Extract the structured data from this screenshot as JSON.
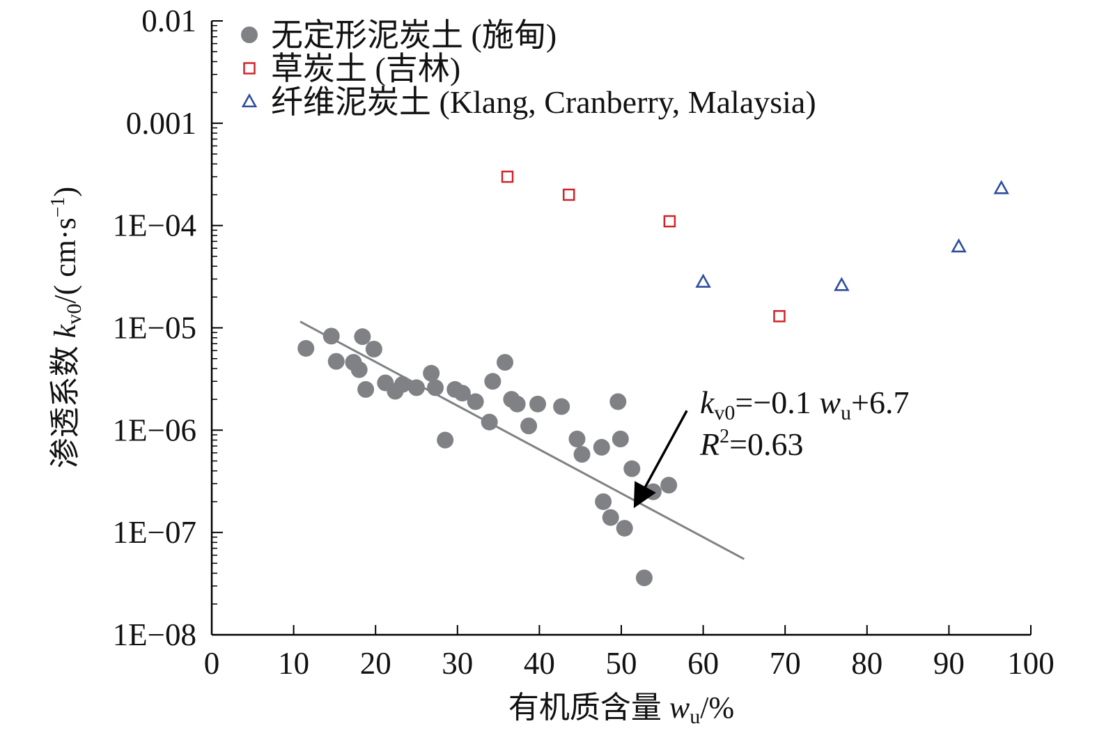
{
  "chart_data": {
    "type": "scatter",
    "title": "",
    "xlabel": "有机质含量 w_u/%",
    "xlabel_parts": {
      "prefix": "有机质含量 ",
      "var": "w",
      "sub": "u",
      "suffix": "/%"
    },
    "ylabel": "渗透系数 k_v0/( cm·s⁻¹)",
    "ylabel_parts": {
      "prefix": "渗透系数 ",
      "var": "k",
      "sub": "v0",
      "suffix": "/( cm·s",
      "sup": "−1",
      "close": ")"
    },
    "xlim": [
      0,
      100
    ],
    "ylim": [
      1e-08,
      0.01
    ],
    "yscale": "log",
    "xticks": [
      0,
      10,
      20,
      30,
      40,
      50,
      60,
      70,
      80,
      90,
      100
    ],
    "xtick_labels": [
      "0",
      "10",
      "20",
      "30",
      "40",
      "50",
      "60",
      "70",
      "80",
      "90",
      "100"
    ],
    "yticks": [
      1e-08,
      1e-07,
      1e-06,
      1e-05,
      0.0001,
      0.001,
      0.01
    ],
    "ytick_labels": [
      "1E−08",
      "1E−07",
      "1E−06",
      "1E−05",
      "1E−04",
      "0.001",
      "0.01"
    ],
    "grid": false,
    "legend_position": "top-left",
    "series": [
      {
        "name": "无定形泥炭土 (施甸)",
        "marker": "filled-circle",
        "color": "#808184",
        "points": [
          [
            11.5,
            6.3e-06
          ],
          [
            14.6,
            8.3e-06
          ],
          [
            15.2,
            4.7e-06
          ],
          [
            17.3,
            4.6e-06
          ],
          [
            18.0,
            3.9e-06
          ],
          [
            18.4,
            8.2e-06
          ],
          [
            18.8,
            2.5e-06
          ],
          [
            19.8,
            6.2e-06
          ],
          [
            21.2,
            2.9e-06
          ],
          [
            22.4,
            2.4e-06
          ],
          [
            23.3,
            2.8e-06
          ],
          [
            25.0,
            2.6e-06
          ],
          [
            26.8,
            3.6e-06
          ],
          [
            27.3,
            2.6e-06
          ],
          [
            28.5,
            8e-07
          ],
          [
            29.7,
            2.5e-06
          ],
          [
            30.6,
            2.3e-06
          ],
          [
            32.2,
            1.9e-06
          ],
          [
            33.9,
            1.2e-06
          ],
          [
            34.3,
            3e-06
          ],
          [
            35.8,
            4.6e-06
          ],
          [
            36.6,
            2e-06
          ],
          [
            37.3,
            1.8e-06
          ],
          [
            38.7,
            1.1e-06
          ],
          [
            39.8,
            1.8e-06
          ],
          [
            42.7,
            1.7e-06
          ],
          [
            44.6,
            8.2e-07
          ],
          [
            45.2,
            5.8e-07
          ],
          [
            47.6,
            6.8e-07
          ],
          [
            47.8,
            2e-07
          ],
          [
            48.7,
            1.4e-07
          ],
          [
            49.6,
            1.9e-06
          ],
          [
            49.9,
            8.2e-07
          ],
          [
            50.4,
            1.1e-07
          ],
          [
            51.3,
            4.2e-07
          ],
          [
            52.8,
            3.6e-08
          ],
          [
            53.9,
            2.5e-07
          ],
          [
            55.8,
            2.9e-07
          ]
        ]
      },
      {
        "name": "草炭土 (吉林)",
        "marker": "open-square",
        "color": "#d1232a",
        "points": [
          [
            36.1,
            0.0003
          ],
          [
            43.6,
            0.0002
          ],
          [
            55.9,
            0.00011
          ],
          [
            69.3,
            1.3e-05
          ]
        ]
      },
      {
        "name": "纤维泥炭土 (Klang, Cranberry, Malaysia)",
        "marker": "open-triangle",
        "color": "#2c4d9e",
        "points": [
          [
            60.0,
            2.8e-05
          ],
          [
            76.9,
            2.6e-05
          ],
          [
            91.2,
            6.2e-05
          ],
          [
            96.4,
            0.00023
          ]
        ]
      }
    ],
    "fit_line": {
      "color": "#808184",
      "points": [
        [
          10.8,
          1.15e-05
        ],
        [
          65.0,
          5.5e-08
        ]
      ]
    },
    "annotation": {
      "eq_lhs_var": "k",
      "eq_lhs_sub": "v0",
      "eq_mid": "=−0.1 ",
      "eq_w_var": "w",
      "eq_w_sub": "u",
      "eq_tail": "+6.7",
      "r2_var": "R",
      "r2_sup": "2",
      "r2_tail": "=0.63",
      "arrow_from": [
        58.0,
        1.55e-06
      ],
      "arrow_to": [
        51.8,
        1.9e-07
      ]
    }
  }
}
